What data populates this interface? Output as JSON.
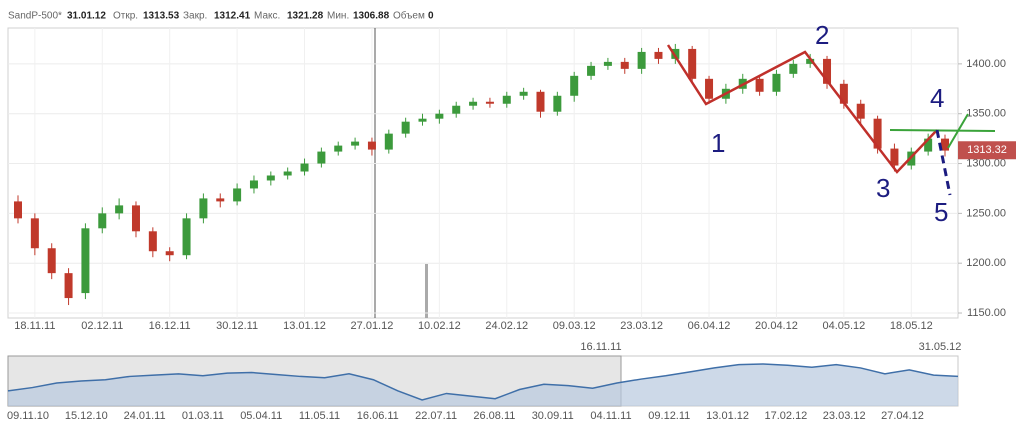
{
  "chart_data": {
    "type": "candlestick",
    "header": {
      "symbol": "SandP-500*",
      "date": "31.01.12",
      "open_label": "Откр.",
      "open": 1313.53,
      "close_label": "Закр.",
      "close": 1312.41,
      "high_label": "Макс.",
      "high": 1321.28,
      "low_label": "Мин.",
      "low": 1306.88,
      "volume_label": "Объем",
      "volume": 0
    },
    "categories": [
      null,
      "18.11.11",
      null,
      null,
      null,
      "02.12.11",
      null,
      null,
      null,
      "16.12.11",
      null,
      null,
      null,
      "30.12.11",
      null,
      null,
      null,
      "13.01.12",
      null,
      null,
      null,
      "27.01.12",
      null,
      null,
      null,
      "10.02.12",
      null,
      null,
      null,
      "24.02.12",
      null,
      null,
      null,
      "09.03.12",
      null,
      null,
      null,
      "23.03.12",
      null,
      null,
      null,
      "06.04.12",
      null,
      null,
      null,
      "20.04.12",
      null,
      null,
      null,
      "04.05.12",
      null,
      null,
      null,
      "18.05.12",
      null,
      null
    ],
    "open": [
      1262,
      1245,
      1215,
      1190,
      1170,
      1235,
      1250,
      1258,
      1232,
      1212,
      1208,
      1245,
      1265,
      1262,
      1275,
      1283,
      1288,
      1292,
      1300,
      1312,
      1318,
      1322,
      1314,
      1330,
      1342,
      1345,
      1350,
      1358,
      1362,
      1360,
      1368,
      1372,
      1352,
      1368,
      1388,
      1398,
      1402,
      1395,
      1412,
      1405,
      1415,
      1385,
      1365,
      1375,
      1385,
      1372,
      1390,
      1400,
      1405,
      1380,
      1360,
      1345,
      1315,
      1298,
      1312,
      1325
    ],
    "high": [
      1268,
      1250,
      1220,
      1195,
      1240,
      1256,
      1265,
      1262,
      1236,
      1216,
      1250,
      1270,
      1270,
      1280,
      1288,
      1292,
      1296,
      1305,
      1316,
      1322,
      1326,
      1326,
      1334,
      1346,
      1350,
      1354,
      1362,
      1366,
      1366,
      1372,
      1376,
      1374,
      1372,
      1392,
      1402,
      1406,
      1406,
      1416,
      1416,
      1420,
      1418,
      1388,
      1380,
      1390,
      1388,
      1394,
      1404,
      1410,
      1408,
      1384,
      1364,
      1348,
      1320,
      1316,
      1330,
      1329
    ],
    "low": [
      1240,
      1208,
      1184,
      1158,
      1164,
      1230,
      1244,
      1226,
      1206,
      1202,
      1204,
      1240,
      1256,
      1258,
      1270,
      1278,
      1284,
      1288,
      1296,
      1308,
      1314,
      1308,
      1310,
      1326,
      1338,
      1340,
      1346,
      1354,
      1356,
      1356,
      1364,
      1346,
      1348,
      1362,
      1384,
      1394,
      1390,
      1390,
      1400,
      1400,
      1380,
      1360,
      1360,
      1370,
      1368,
      1368,
      1386,
      1396,
      1375,
      1355,
      1340,
      1310,
      1292,
      1294,
      1308,
      1307
    ],
    "close": [
      1245,
      1215,
      1190,
      1165,
      1235,
      1250,
      1258,
      1232,
      1212,
      1208,
      1245,
      1265,
      1262,
      1275,
      1283,
      1288,
      1292,
      1300,
      1312,
      1318,
      1322,
      1314,
      1330,
      1342,
      1345,
      1350,
      1358,
      1362,
      1360,
      1368,
      1372,
      1352,
      1368,
      1388,
      1398,
      1402,
      1395,
      1412,
      1405,
      1415,
      1385,
      1365,
      1375,
      1385,
      1372,
      1390,
      1400,
      1405,
      1380,
      1360,
      1345,
      1315,
      1298,
      1312,
      1325,
      1313
    ],
    "up_color": "#3c9a3c",
    "down_color": "#c0392b",
    "ylim": [
      1145,
      1436
    ],
    "yticks": [
      {
        "value": 1150,
        "label": "1150.00"
      },
      {
        "value": 1200,
        "label": "1200.00"
      },
      {
        "value": 1250,
        "label": "1250.00"
      },
      {
        "value": 1300,
        "label": "1300.00"
      },
      {
        "value": 1350,
        "label": "1350.00"
      },
      {
        "value": 1400,
        "label": "1400.00"
      }
    ],
    "grid": true,
    "last_price": 1313.32,
    "last_price_color": "#c0504d",
    "annotations": [
      "1",
      "2",
      "3",
      "4",
      "5"
    ],
    "navigator": {
      "values": [
        1200,
        1225,
        1260,
        1275,
        1285,
        1310,
        1320,
        1330,
        1315,
        1335,
        1340,
        1325,
        1310,
        1300,
        1330,
        1285,
        1200,
        1130,
        1180,
        1160,
        1140,
        1210,
        1250,
        1240,
        1220,
        1260,
        1290,
        1315,
        1345,
        1375,
        1400,
        1405,
        1395,
        1380,
        1400,
        1375,
        1330,
        1360,
        1320,
        1310
      ],
      "labels": [
        "09.11.10",
        "15.12.10",
        "24.01.11",
        "01.03.11",
        "05.04.11",
        "11.05.11",
        "16.06.11",
        "22.07.11",
        "26.08.11",
        "30.09.11",
        "04.11.11",
        "09.12.11",
        "13.01.12",
        "17.02.12",
        "23.03.12",
        "27.04.12"
      ],
      "range_start": "16.11.11",
      "range_end": "31.05.12"
    }
  }
}
